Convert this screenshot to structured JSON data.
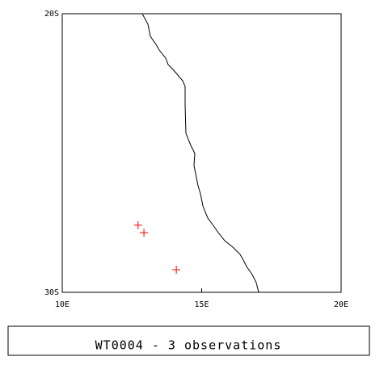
{
  "chart_data": {
    "type": "scatter",
    "title": "WT0004 - 3 observations",
    "series": [
      {
        "color": "#ff0000",
        "x": [
          12.72,
          12.93,
          14.09
        ],
        "values": [
          -27.59,
          -27.86,
          -29.19
        ]
      }
    ],
    "xlim": [
      10,
      20
    ],
    "ylim": [
      -30,
      -20
    ],
    "xticks": [
      {
        "value": 10,
        "label": "10E"
      },
      {
        "value": 15,
        "label": "15E"
      },
      {
        "value": 20,
        "label": "20E"
      }
    ],
    "yticks": [
      {
        "value": -20,
        "label": "20S"
      },
      {
        "value": -30,
        "label": "30S"
      }
    ]
  }
}
